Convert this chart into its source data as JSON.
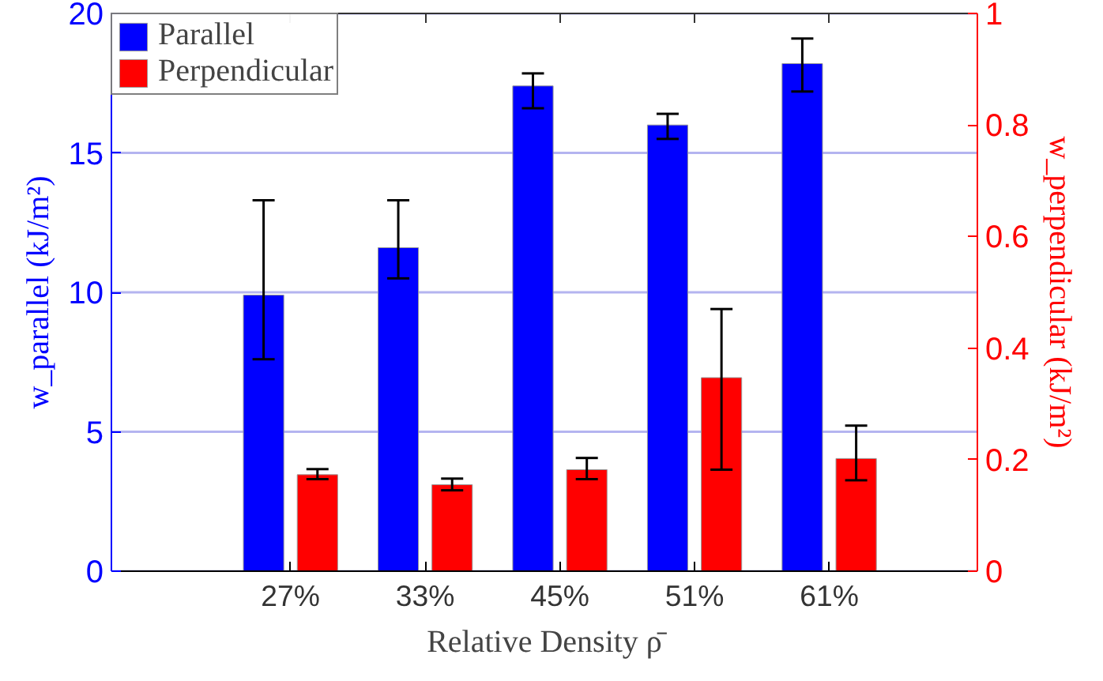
{
  "chart_data": {
    "type": "bar",
    "categories": [
      "27%",
      "33%",
      "45%",
      "51%",
      "61%"
    ],
    "xlabel": "Relative Density ρ̄",
    "ylabel": "w_parallel (kJ/m²)",
    "y2label": "w_perpendicular (kJ/m²)",
    "series": [
      {
        "name": "Parallel",
        "color": "#0000ff",
        "values": [
          9.9,
          11.6,
          17.4,
          16.0,
          18.2
        ],
        "errors": [
          [
            7.6,
            13.3
          ],
          [
            10.5,
            13.3
          ],
          [
            16.6,
            17.85
          ],
          [
            15.5,
            16.4
          ],
          [
            17.2,
            19.1
          ]
        ]
      },
      {
        "name": "Perpendicular",
        "color": "#ff0000",
        "axis": "y2",
        "values": [
          0.173,
          0.155,
          0.182,
          0.347,
          0.202
        ],
        "errors": [
          [
            0.165,
            0.183
          ],
          [
            0.145,
            0.166
          ],
          [
            0.165,
            0.203
          ],
          [
            0.182,
            0.47
          ],
          [
            0.163,
            0.261
          ]
        ]
      }
    ],
    "ylim": [
      0,
      20
    ],
    "yticks": [
      0,
      5,
      10,
      15,
      20
    ],
    "y2lim": [
      0,
      1
    ],
    "y2ticks": [
      0,
      0.2,
      0.4,
      0.6,
      0.8,
      1
    ],
    "grid": "y",
    "legend": "top left"
  }
}
